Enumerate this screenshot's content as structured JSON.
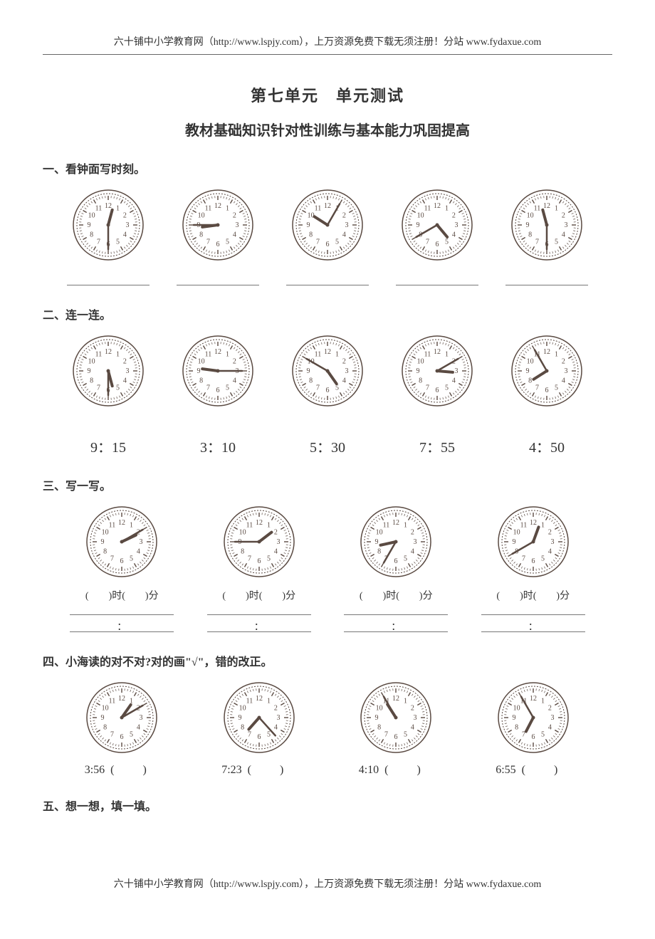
{
  "header_text": "六十铺中小学教育网（http://www.lspjy.com），上万资源免费下载无须注册！分站 www.fydaxue.com",
  "footer_text": "六十铺中小学教育网（http://www.lspjy.com），上万资源免费下载无须注册！分站 www.fydaxue.com",
  "title_line1": "第七单元　单元测试",
  "title_line2": "教材基础知识针对性训练与基本能力巩固提高",
  "clock_style": {
    "diameter": 100,
    "stroke": "#5a4a42",
    "face_fill": "#ffffff",
    "number_font_size": 10,
    "hour_hand_len": 22,
    "hour_hand_width": 4,
    "minute_hand_len": 34,
    "minute_hand_width": 2.5
  },
  "sections": {
    "q1": {
      "label": "一、看钟面写时刻。",
      "clocks": [
        {
          "hour": 12,
          "minute": 30
        },
        {
          "hour": 8,
          "minute": 45
        },
        {
          "hour": 10,
          "minute": 5
        },
        {
          "hour": 4,
          "minute": 40
        },
        {
          "hour": 11,
          "minute": 30
        }
      ]
    },
    "q2": {
      "label": "二、连一连。",
      "clocks": [
        {
          "hour": 5,
          "minute": 30
        },
        {
          "hour": 9,
          "minute": 15
        },
        {
          "hour": 4,
          "minute": 50
        },
        {
          "hour": 3,
          "minute": 10
        },
        {
          "hour": 7,
          "minute": 55
        }
      ],
      "times": [
        "9：15",
        "3：10",
        "5：30",
        "7：55",
        "4：50"
      ]
    },
    "q3": {
      "label": "三、写一写。",
      "clocks": [
        {
          "hour": 2,
          "minute": 10
        },
        {
          "hour": 1,
          "minute": 45
        },
        {
          "hour": 8,
          "minute": 35
        },
        {
          "hour": 12,
          "minute": 40
        }
      ],
      "fill_template_left": "(",
      "fill_template_mid1": ")时(",
      "fill_template_mid2": ")分",
      "colon": "："
    },
    "q4": {
      "label": "四、小海读的对不对?对的画\"√\"，错的改正。",
      "items": [
        {
          "hour": 1,
          "minute": 10,
          "text": "3:56"
        },
        {
          "hour": 7,
          "minute": 23,
          "text": "7:23"
        },
        {
          "hour": 10,
          "minute": 55,
          "text": "4:10"
        },
        {
          "hour": 6,
          "minute": 55,
          "text": "6:55"
        }
      ]
    },
    "q5": {
      "label": "五、想一想，填一填。"
    }
  }
}
